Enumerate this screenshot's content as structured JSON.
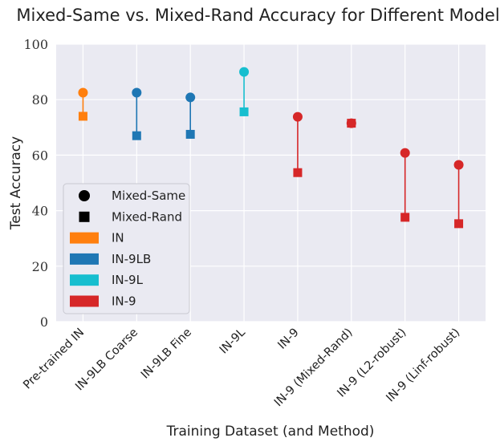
{
  "chart_data": {
    "type": "scatter",
    "title": "Mixed-Same vs. Mixed-Rand Accuracy for Different Models",
    "xlabel": "Training Dataset (and Method)",
    "ylabel": "Test Accuracy",
    "ylim": [
      0,
      100
    ],
    "yticks": [
      "0",
      "20",
      "40",
      "60",
      "80",
      "100"
    ],
    "grid": true,
    "legend_position": "lower-left",
    "categories": [
      "Pre-trained IN",
      "IN-9LB Coarse",
      "IN-9LB Fine",
      "IN-9L",
      "IN-9",
      "IN-9 (Mixed-Rand)",
      "IN-9 (L2-robust)",
      "IN-9 (Linf-robust)"
    ],
    "groups": [
      "IN",
      "IN-9LB",
      "IN-9LB",
      "IN-9L",
      "IN-9",
      "IN-9",
      "IN-9",
      "IN-9"
    ],
    "series": [
      {
        "name": "Mixed-Same",
        "marker": "circle",
        "values": [
          82.5,
          82.5,
          80.8,
          90.0,
          73.8,
          71.5,
          60.8,
          56.5
        ]
      },
      {
        "name": "Mixed-Rand",
        "marker": "square",
        "values": [
          74.0,
          67.0,
          67.5,
          75.6,
          53.7,
          71.5,
          37.6,
          35.3
        ]
      }
    ],
    "legend": {
      "markers": [
        {
          "label": "Mixed-Same",
          "shape": "circle"
        },
        {
          "label": "Mixed-Rand",
          "shape": "square"
        }
      ],
      "colors": [
        {
          "label": "IN",
          "color": "#ff7f0e"
        },
        {
          "label": "IN-9LB",
          "color": "#1f77b4"
        },
        {
          "label": "IN-9L",
          "color": "#17becf"
        },
        {
          "label": "IN-9",
          "color": "#d62728"
        }
      ]
    }
  }
}
